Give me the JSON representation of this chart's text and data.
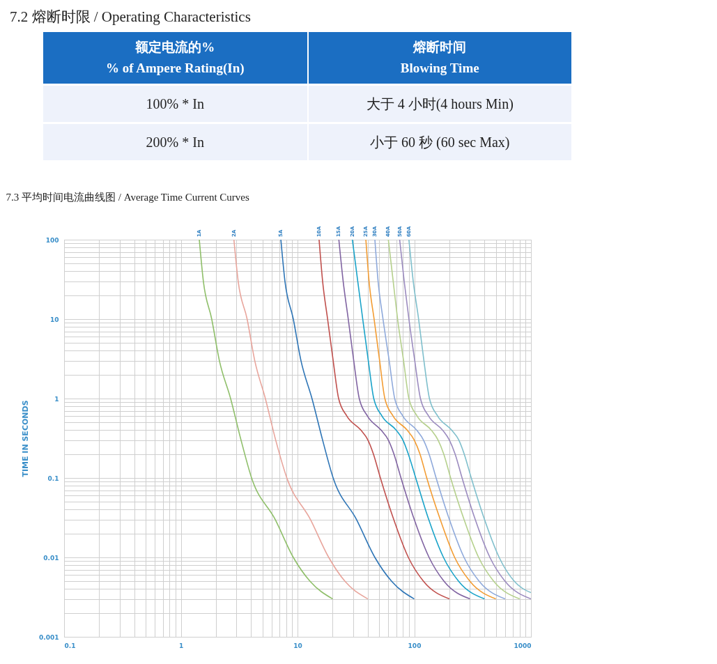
{
  "chart_data": [
    {
      "type": "other",
      "title": "7.2 熔断时限 / Operating Characteristics",
      "annotations": [
        "额定电流的%",
        "% of Ampere Rating(In)",
        "熔断时间",
        "Blowing Time",
        "100% * In",
        "大于 4 小时(4 hours Min)",
        "200% * In",
        "小于 60 秒  (60 sec Max)"
      ]
    },
    {
      "type": "line",
      "title": "7.3 平均时间电流曲线图 / Average Time Current Curves",
      "ylabel": "TIME IN SECONDS",
      "log": "xy",
      "grid": true,
      "xlim": [
        0.1,
        1000
      ],
      "xticks": [
        0.1,
        {
          "value": 0.2,
          "label": null
        },
        {
          "value": 0.3,
          "label": null
        },
        {
          "value": 0.4,
          "label": null
        },
        {
          "value": 0.5,
          "label": null
        },
        {
          "value": 0.6,
          "label": null
        },
        {
          "value": 0.7,
          "label": null
        },
        {
          "value": 0.8,
          "label": null
        },
        {
          "value": 0.9,
          "label": null
        },
        1,
        {
          "value": 2,
          "label": null
        },
        {
          "value": 3,
          "label": null
        },
        {
          "value": 4,
          "label": null
        },
        {
          "value": 5,
          "label": null
        },
        {
          "value": 6,
          "label": null
        },
        {
          "value": 7,
          "label": null
        },
        {
          "value": 8,
          "label": null
        },
        {
          "value": 9,
          "label": null
        },
        10,
        {
          "value": 20,
          "label": null
        },
        {
          "value": 30,
          "label": null
        },
        {
          "value": 40,
          "label": null
        },
        {
          "value": 50,
          "label": null
        },
        {
          "value": 60,
          "label": null
        },
        {
          "value": 70,
          "label": null
        },
        {
          "value": 80,
          "label": null
        },
        {
          "value": 90,
          "label": null
        },
        100,
        {
          "value": 200,
          "label": null
        },
        {
          "value": 300,
          "label": null
        },
        {
          "value": 400,
          "label": null
        },
        {
          "value": 500,
          "label": null
        },
        {
          "value": 600,
          "label": null
        },
        {
          "value": 700,
          "label": null
        },
        {
          "value": 800,
          "label": null
        },
        {
          "value": 900,
          "label": null
        },
        1000
      ],
      "ylim": [
        0.001,
        100
      ],
      "yticks": [
        0.001,
        {
          "value": 0.002,
          "label": null
        },
        {
          "value": 0.003,
          "label": null
        },
        {
          "value": 0.004,
          "label": null
        },
        {
          "value": 0.005,
          "label": null
        },
        {
          "value": 0.006,
          "label": null
        },
        {
          "value": 0.007,
          "label": null
        },
        {
          "value": 0.008,
          "label": null
        },
        {
          "value": 0.009,
          "label": null
        },
        0.01,
        {
          "value": 0.02,
          "label": null
        },
        {
          "value": 0.03,
          "label": null
        },
        {
          "value": 0.04,
          "label": null
        },
        {
          "value": 0.05,
          "label": null
        },
        {
          "value": 0.06,
          "label": null
        },
        {
          "value": 0.07,
          "label": null
        },
        {
          "value": 0.08,
          "label": null
        },
        {
          "value": 0.09,
          "label": null
        },
        0.1,
        {
          "value": 0.2,
          "label": null
        },
        {
          "value": 0.3,
          "label": null
        },
        {
          "value": 0.4,
          "label": null
        },
        {
          "value": 0.5,
          "label": null
        },
        {
          "value": 0.6,
          "label": null
        },
        {
          "value": 0.7,
          "label": null
        },
        {
          "value": 0.8,
          "label": null
        },
        {
          "value": 0.9,
          "label": null
        },
        1,
        {
          "value": 2,
          "label": null
        },
        {
          "value": 3,
          "label": null
        },
        {
          "value": 4,
          "label": null
        },
        {
          "value": 5,
          "label": null
        },
        {
          "value": 6,
          "label": null
        },
        {
          "value": 7,
          "label": null
        },
        {
          "value": 8,
          "label": null
        },
        {
          "value": 9,
          "label": null
        },
        10,
        {
          "value": 20,
          "label": null
        },
        {
          "value": 30,
          "label": null
        },
        {
          "value": 40,
          "label": null
        },
        {
          "value": 50,
          "label": null
        },
        {
          "value": 60,
          "label": null
        },
        {
          "value": 70,
          "label": null
        },
        {
          "value": 80,
          "label": null
        },
        {
          "value": 90,
          "label": null
        },
        100
      ],
      "series": [
        {
          "name": "1A",
          "color": "#8fbf6a",
          "x": [
            1.44,
            1.56,
            1.84,
            2.14,
            2.67,
            3.28,
            4.04,
            6.44,
            9.2,
            12.8,
            20
          ],
          "values": [
            100,
            30,
            10,
            3,
            1,
            0.3,
            0.1,
            0.03,
            0.01,
            0.005,
            0.003
          ]
        },
        {
          "name": "2A",
          "color": "#e8a59c",
          "x": [
            2.85,
            3.1,
            3.7,
            4.3,
            5.3,
            6.5,
            8.1,
            12.9,
            18.5,
            25.5,
            40
          ],
          "values": [
            100,
            30,
            10,
            3,
            1,
            0.3,
            0.1,
            0.03,
            0.01,
            0.005,
            0.003
          ]
        },
        {
          "name": "5A",
          "color": "#2e75b6",
          "x": [
            7.2,
            7.8,
            9.2,
            10.7,
            13.3,
            16.4,
            20.2,
            32,
            46,
            64,
            100
          ],
          "values": [
            100,
            30,
            10,
            3,
            1,
            0.3,
            0.1,
            0.03,
            0.01,
            0.005,
            0.003
          ]
        },
        {
          "name": "10A",
          "color": "#c0504d",
          "x": [
            15.3,
            16.4,
            18.1,
            20.2,
            22.5,
            26.5,
            34.9,
            40.1,
            44.7,
            51.3,
            66.7,
            89,
            120,
            200
          ],
          "values": [
            100,
            30,
            10,
            3,
            1,
            0.6,
            0.4,
            0.3,
            0.2,
            0.1,
            0.03,
            0.01,
            0.005,
            0.003
          ]
        },
        {
          "name": "15A",
          "color": "#8064a2",
          "x": [
            22.6,
            24.6,
            27.2,
            30.3,
            33.8,
            39.8,
            52,
            60,
            67,
            77,
            100,
            134,
            180,
            300
          ],
          "values": [
            100,
            30,
            10,
            3,
            1,
            0.6,
            0.4,
            0.3,
            0.2,
            0.1,
            0.03,
            0.01,
            0.005,
            0.003
          ]
        },
        {
          "name": "20A",
          "color": "#1aa3c9",
          "x": [
            29.5,
            32.8,
            36.2,
            40.4,
            45,
            53,
            70,
            80,
            89,
            103,
            133,
            178,
            240,
            400
          ],
          "values": [
            100,
            30,
            10,
            3,
            1,
            0.6,
            0.4,
            0.3,
            0.2,
            0.1,
            0.03,
            0.01,
            0.005,
            0.003
          ]
        },
        {
          "name": "25A",
          "color": "#f39c32",
          "x": [
            38.5,
            41,
            45.3,
            50.5,
            56,
            66,
            87,
            100,
            112,
            128,
            167,
            222,
            300,
            500
          ],
          "values": [
            100,
            30,
            10,
            3,
            1,
            0.6,
            0.4,
            0.3,
            0.2,
            0.1,
            0.03,
            0.01,
            0.005,
            0.003
          ]
        },
        {
          "name": "30A",
          "color": "#8ea9db",
          "x": [
            46,
            49,
            54,
            61,
            68,
            80,
            105,
            120,
            134,
            154,
            200,
            267,
            360,
            600
          ],
          "values": [
            100,
            30,
            10,
            3,
            1,
            0.6,
            0.4,
            0.3,
            0.2,
            0.1,
            0.03,
            0.01,
            0.005,
            0.003
          ]
        },
        {
          "name": "40A",
          "color": "#b5d08c",
          "x": [
            60,
            66,
            72,
            81,
            90,
            106,
            140,
            160,
            179,
            205,
            267,
            356,
            480,
            800
          ],
          "values": [
            100,
            30,
            10,
            3,
            1,
            0.6,
            0.4,
            0.3,
            0.2,
            0.1,
            0.03,
            0.01,
            0.005,
            0.003
          ]
        },
        {
          "name": "50A",
          "color": "#9b8bbf",
          "x": [
            75,
            82,
            90,
            101,
            113,
            133,
            175,
            200,
            224,
            257,
            333,
            445,
            600,
            1000
          ],
          "values": [
            100,
            30,
            10,
            3,
            1,
            0.6,
            0.4,
            0.3,
            0.2,
            0.1,
            0.03,
            0.01,
            0.005,
            0.003
          ]
        },
        {
          "name": "60A",
          "color": "#7fbfcc",
          "x": [
            90,
            98,
            109,
            121,
            135,
            159,
            209,
            241,
            268,
            308,
            400,
            534,
            720,
            1000
          ],
          "values": [
            100,
            30,
            10,
            3,
            1,
            0.6,
            0.4,
            0.3,
            0.2,
            0.1,
            0.03,
            0.01,
            0.005,
            0.0036
          ]
        }
      ]
    }
  ]
}
